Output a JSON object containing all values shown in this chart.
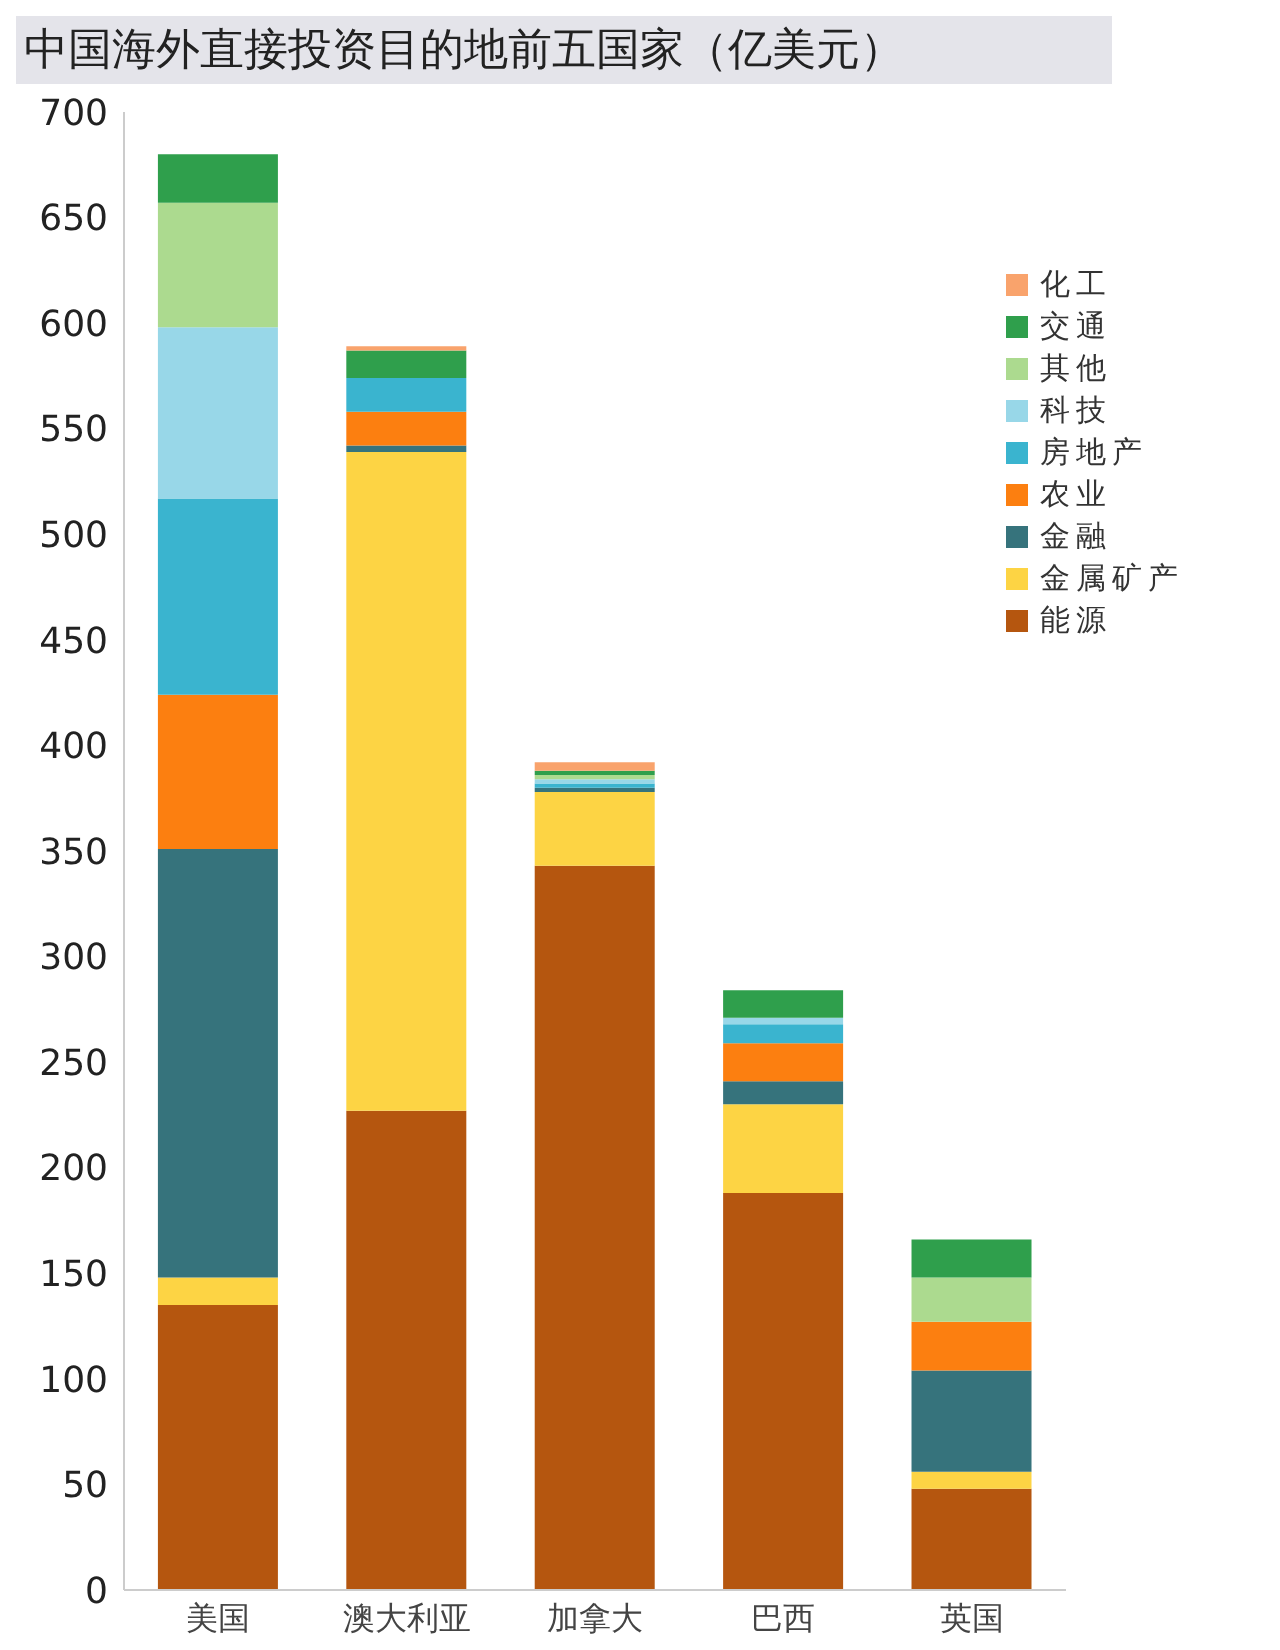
{
  "chart_data": {
    "type": "bar",
    "title": "中国海外直接投资目的地前五国家（亿美元）",
    "stacked": true,
    "categories": [
      "美国",
      "澳大利亚",
      "加拿大",
      "巴西",
      "英国"
    ],
    "series": [
      {
        "name": "能源",
        "color": "#b5560f",
        "values": [
          135,
          227,
          343,
          188,
          48
        ]
      },
      {
        "name": "金属矿产",
        "color": "#fdd444",
        "values": [
          13,
          312,
          35,
          42,
          8
        ]
      },
      {
        "name": "金融",
        "color": "#36737c",
        "values": [
          203,
          3,
          2,
          11,
          48
        ]
      },
      {
        "name": "农业",
        "color": "#fc7f10",
        "values": [
          73,
          16,
          0,
          18,
          23
        ]
      },
      {
        "name": "房地产",
        "color": "#3ab4cf",
        "values": [
          93,
          16,
          2,
          9,
          0
        ]
      },
      {
        "name": "科技",
        "color": "#98d7e8",
        "values": [
          81,
          0,
          2,
          3,
          0
        ]
      },
      {
        "name": "其他",
        "color": "#acda8f",
        "values": [
          59,
          0,
          2,
          0,
          21
        ]
      },
      {
        "name": "交通",
        "color": "#2f9f4c",
        "values": [
          23,
          13,
          2,
          13,
          18
        ]
      },
      {
        "name": "化工",
        "color": "#f9a36c",
        "values": [
          0,
          2,
          4,
          0,
          0
        ]
      }
    ],
    "ylim": [
      0,
      700
    ],
    "yticks": [
      0,
      50,
      100,
      150,
      200,
      250,
      300,
      350,
      400,
      450,
      500,
      550,
      600,
      650,
      700
    ],
    "legend": "top right"
  }
}
